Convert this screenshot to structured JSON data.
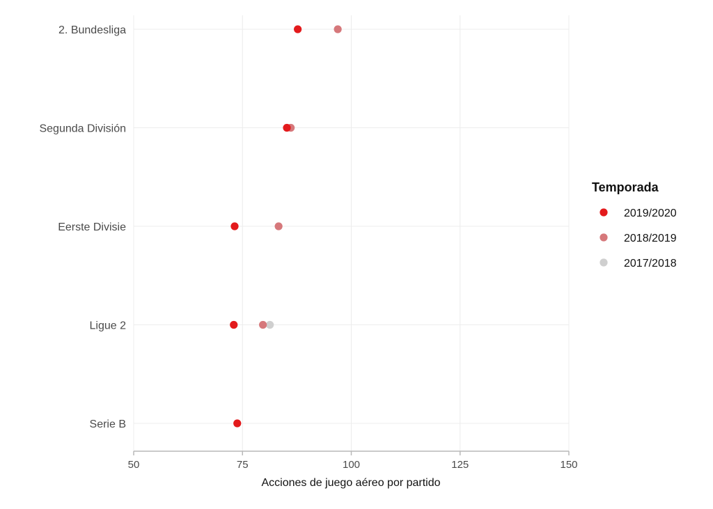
{
  "chart_data": {
    "type": "scatter",
    "title": "",
    "xlabel": "Acciones de juego aéreo por partido",
    "ylabel": "",
    "xlim": [
      50,
      150
    ],
    "x_ticks": [
      50,
      75,
      100,
      125,
      150
    ],
    "grid": true,
    "legend_title": "Temporada",
    "legend_position": "right",
    "categories": [
      "2. Bundesliga",
      "Segunda División",
      "Eerste Divisie",
      "Ligue 2",
      "Serie B"
    ],
    "series": [
      {
        "name": "2019/2020",
        "color": "#e31a1c",
        "values": [
          87.7,
          85.2,
          73.2,
          73.0,
          73.8
        ]
      },
      {
        "name": "2018/2019",
        "color": "#d6787b",
        "values": [
          96.9,
          86.1,
          83.3,
          79.7,
          null
        ]
      },
      {
        "name": "2017/2018",
        "color": "#cfcfcf",
        "values": [
          null,
          null,
          null,
          81.3,
          null
        ]
      }
    ]
  }
}
